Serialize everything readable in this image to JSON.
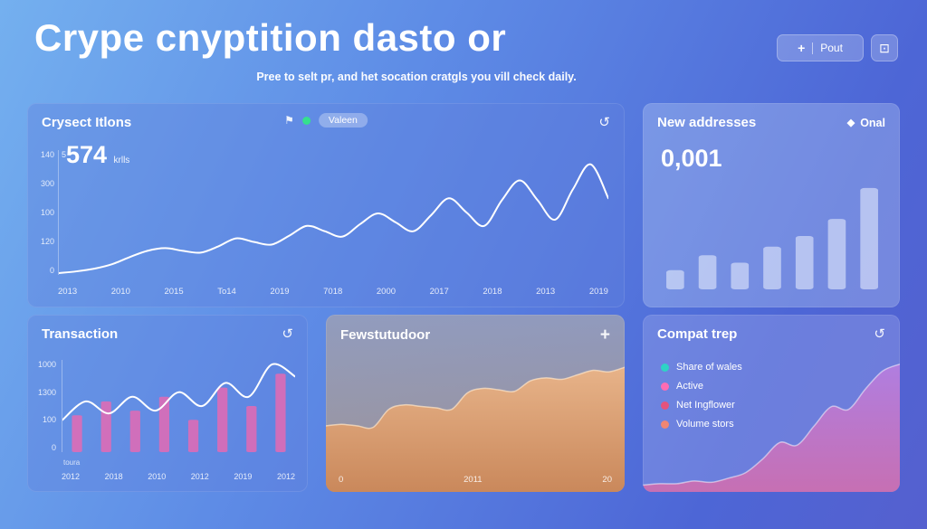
{
  "header": {
    "title": "Crype cnyptition dasto or",
    "subtitle": "Pree to selt pr, and het socation cratgls you vill check daily.",
    "primary_button": {
      "plus": "+",
      "label": "Pout"
    },
    "icon_button": {
      "icon": "⊡"
    }
  },
  "panels": {
    "crysect": {
      "title": "Crysect Itlons",
      "flag_icon": "⚑",
      "badge": "Valeen",
      "refresh_icon": "↺",
      "big_sup": "5",
      "big_number": "574",
      "big_unit": "krlls"
    },
    "new_addresses": {
      "title": "New addresses",
      "diamond_icon": "◆",
      "action": "Onal",
      "big_number": "0,001"
    },
    "transaction": {
      "title": "Transaction",
      "refresh_icon": "↺",
      "footnote": "toura"
    },
    "fewstutudoor": {
      "title": "Fewstutudoor",
      "plus_icon": "+"
    },
    "compat": {
      "title": "Compat trep",
      "refresh_icon": "↺"
    }
  },
  "chart_data": [
    {
      "id": "crysect",
      "type": "line",
      "title": "Crysect Itlons",
      "ylim": [
        0,
        140
      ],
      "y_ticks": [
        "140",
        "300",
        "100",
        "120",
        "0"
      ],
      "x": [
        "2013",
        "2010",
        "2015",
        "To14",
        "2019",
        "7018",
        "2000",
        "2017",
        "2018",
        "2013",
        "2019"
      ],
      "values": [
        2,
        4,
        7,
        12,
        20,
        27,
        30,
        27,
        25,
        32,
        41,
        37,
        34,
        44,
        55,
        49,
        43,
        57,
        69,
        59,
        49,
        67,
        86,
        70,
        55,
        84,
        106,
        84,
        62,
        96,
        124,
        86
      ],
      "stroke": "#ffffff",
      "legend_position": "none",
      "grid": false
    },
    {
      "id": "new-addresses",
      "type": "bar",
      "title": "New addresses",
      "ylim": [
        0,
        100
      ],
      "values": [
        18,
        32,
        25,
        40,
        50,
        66,
        95
      ],
      "bar_width": 0.55,
      "fill": "rgba(236,243,255,0.55)",
      "grid": false
    },
    {
      "id": "transaction",
      "type": "combo",
      "title": "Transaction",
      "ylim": [
        0,
        100
      ],
      "y_ticks": [
        "1000",
        "1300",
        "100",
        "0"
      ],
      "categories": [
        "2012",
        "2018",
        "2010",
        "2012",
        "2019",
        "2012"
      ],
      "bar_values": [
        40,
        55,
        45,
        60,
        35,
        70,
        50,
        85
      ],
      "line_values": [
        35,
        55,
        42,
        60,
        45,
        65,
        50,
        75,
        60,
        95,
        82
      ],
      "bar_fill": "rgba(236,104,176,0.8)",
      "bar_width": 0.35,
      "stroke": "#ffffff",
      "grid": false
    },
    {
      "id": "fewstutudoor",
      "type": "area",
      "title": "Fewstutudoor",
      "ylim": [
        0,
        100
      ],
      "x_ticks": [
        "0",
        "2011",
        "20"
      ],
      "values": [
        44,
        45,
        44,
        43,
        55,
        58,
        57,
        56,
        55,
        66,
        69,
        68,
        67,
        74,
        76,
        75,
        78,
        81,
        80,
        83
      ],
      "gradient": {
        "from": "#e7b389",
        "to": "#c9875a"
      },
      "stroke": "rgba(255,230,200,0.7)",
      "grid": false
    },
    {
      "id": "compat",
      "type": "area",
      "title": "Compat trep",
      "ylim": [
        0,
        100
      ],
      "values": [
        5,
        6,
        6,
        8,
        7,
        10,
        14,
        24,
        36,
        34,
        48,
        62,
        60,
        75,
        88,
        93
      ],
      "gradient": {
        "from": "#b07ee0",
        "to": "#c76fb2"
      },
      "stroke": "rgba(255,255,255,0.5)",
      "legend_position": "top-left",
      "legend": [
        {
          "label": "Share of wales",
          "color": "#2ed3c5"
        },
        {
          "label": "Active",
          "color": "#ff6cb3"
        },
        {
          "label": "Net Ingflower",
          "color": "#e5537d"
        },
        {
          "label": "Volume stors",
          "color": "#ef8673"
        }
      ],
      "grid": false
    }
  ]
}
